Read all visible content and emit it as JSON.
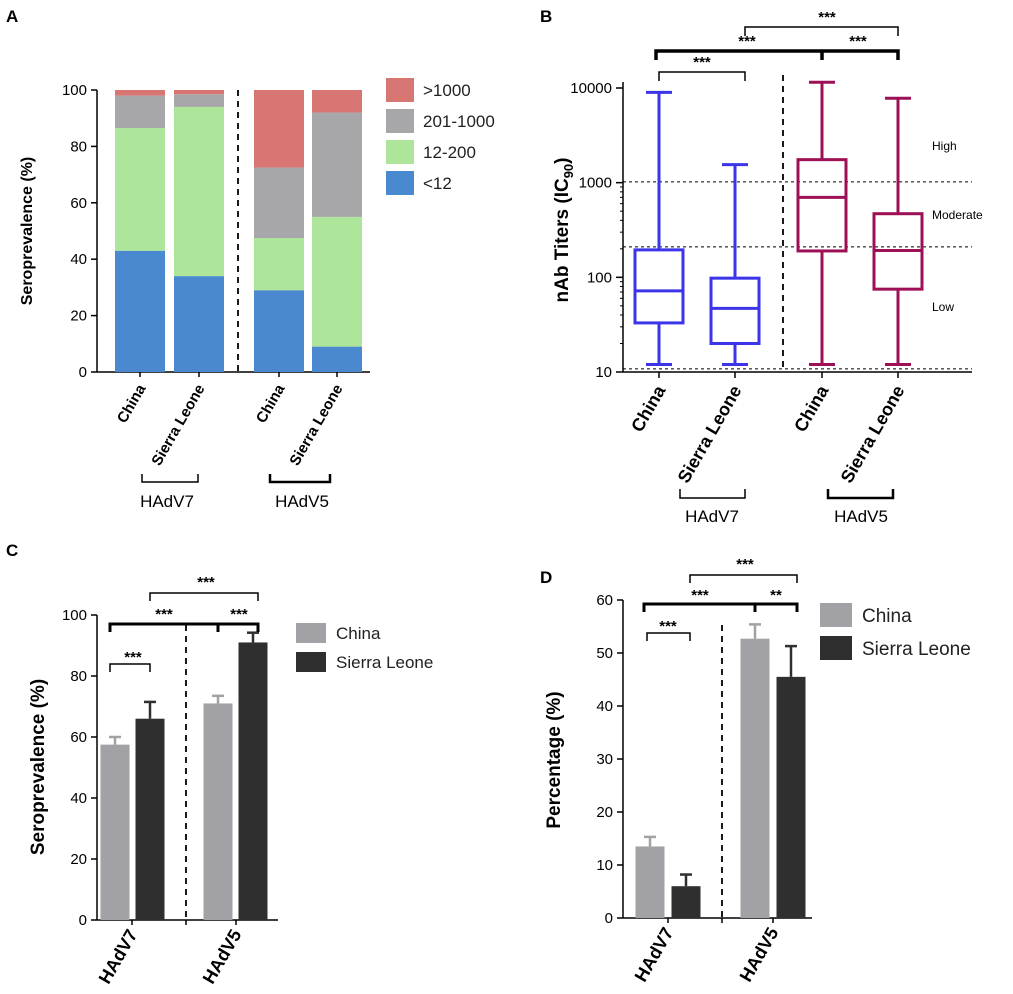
{
  "panels": {
    "A": "A",
    "B": "B",
    "C": "C",
    "D": "D"
  },
  "colors": {
    "red": "#d87674",
    "gray": "#a7a7a9",
    "green": "#ade59a",
    "blue": "#4a89cf",
    "boxBlue": "#3b34e8",
    "boxMaroon": "#9e1055",
    "barGray": "#a2a2a6",
    "barDark": "#2f2f2f"
  },
  "chart_data": [
    {
      "panel": "A",
      "type": "bar",
      "stacked": true,
      "ylabel": "Seroprevalence (%)",
      "ylim": [
        0,
        100
      ],
      "yticks": [
        "0",
        "20",
        "40",
        "60",
        "80",
        "100"
      ],
      "categories": [
        "China",
        "Sierra Leone",
        "China",
        "Sierra Leone"
      ],
      "groups": [
        "HAdV7",
        "HAdV5"
      ],
      "series": [
        {
          "name": "<12",
          "values": [
            43,
            34,
            29,
            9
          ]
        },
        {
          "name": "12-200",
          "values": [
            43.5,
            60,
            18.5,
            46
          ]
        },
        {
          "name": "201-1000",
          "values": [
            11.5,
            4.5,
            25,
            37
          ]
        },
        {
          "name": ">1000",
          "values": [
            2,
            1.5,
            27.5,
            8
          ]
        }
      ],
      "legend": [
        ">1000",
        "201-1000",
        "12-200",
        "<12"
      ]
    },
    {
      "panel": "B",
      "type": "box",
      "ylabel_main": "nAb Titers (IC",
      "ylabel_sub": "90",
      "ylabel_end": ")",
      "yscale": "log",
      "ylim": [
        10,
        10000
      ],
      "yticks": [
        "10",
        "100",
        "1000",
        "10000"
      ],
      "categories": [
        "China",
        "Sierra Leone",
        "China",
        "Sierra Leone"
      ],
      "groups": [
        "HAdV7",
        "HAdV5"
      ],
      "boxes": [
        {
          "min": 12,
          "q1": 33,
          "median": 72,
          "q3": 195,
          "max": 9000
        },
        {
          "min": 12,
          "q1": 20,
          "median": 47,
          "q3": 98,
          "max": 1550
        },
        {
          "min": 12,
          "q1": 190,
          "median": 700,
          "q3": 1750,
          "max": 11500
        },
        {
          "min": 12,
          "q1": 75,
          "median": 192,
          "q3": 470,
          "max": 7800
        }
      ],
      "thresholds": [
        10.8,
        210,
        1020
      ],
      "regions": [
        "High",
        "Moderate",
        "Low"
      ],
      "significance": [
        "***",
        "***",
        "***",
        "***"
      ]
    },
    {
      "panel": "C",
      "type": "bar",
      "ylabel": "Seroprevalence (%)",
      "ylim": [
        0,
        100
      ],
      "yticks": [
        "0",
        "20",
        "40",
        "60",
        "80",
        "100"
      ],
      "categories": [
        "HAdV7",
        "HAdV5"
      ],
      "series": [
        {
          "name": "China",
          "values": [
            57.5,
            71
          ],
          "errors": [
            2.5,
            2.5
          ]
        },
        {
          "name": "Sierra Leone",
          "values": [
            66,
            91
          ],
          "errors": [
            5.5,
            3.2
          ]
        }
      ],
      "significance": [
        "***",
        "***",
        "***",
        "***"
      ]
    },
    {
      "panel": "D",
      "type": "bar",
      "ylabel": "Percentage (%)",
      "ylim": [
        0,
        60
      ],
      "yticks": [
        "0",
        "10",
        "20",
        "30",
        "40",
        "50",
        "60"
      ],
      "categories": [
        "HAdV7",
        "HAdV5"
      ],
      "series": [
        {
          "name": "China",
          "values": [
            13.5,
            52.7
          ],
          "errors": [
            1.8,
            2.7
          ]
        },
        {
          "name": "Sierra Leone",
          "values": [
            6,
            45.5
          ],
          "errors": [
            2.2,
            5.8
          ]
        }
      ],
      "significance": [
        "***",
        "***",
        "**",
        "***"
      ]
    }
  ]
}
